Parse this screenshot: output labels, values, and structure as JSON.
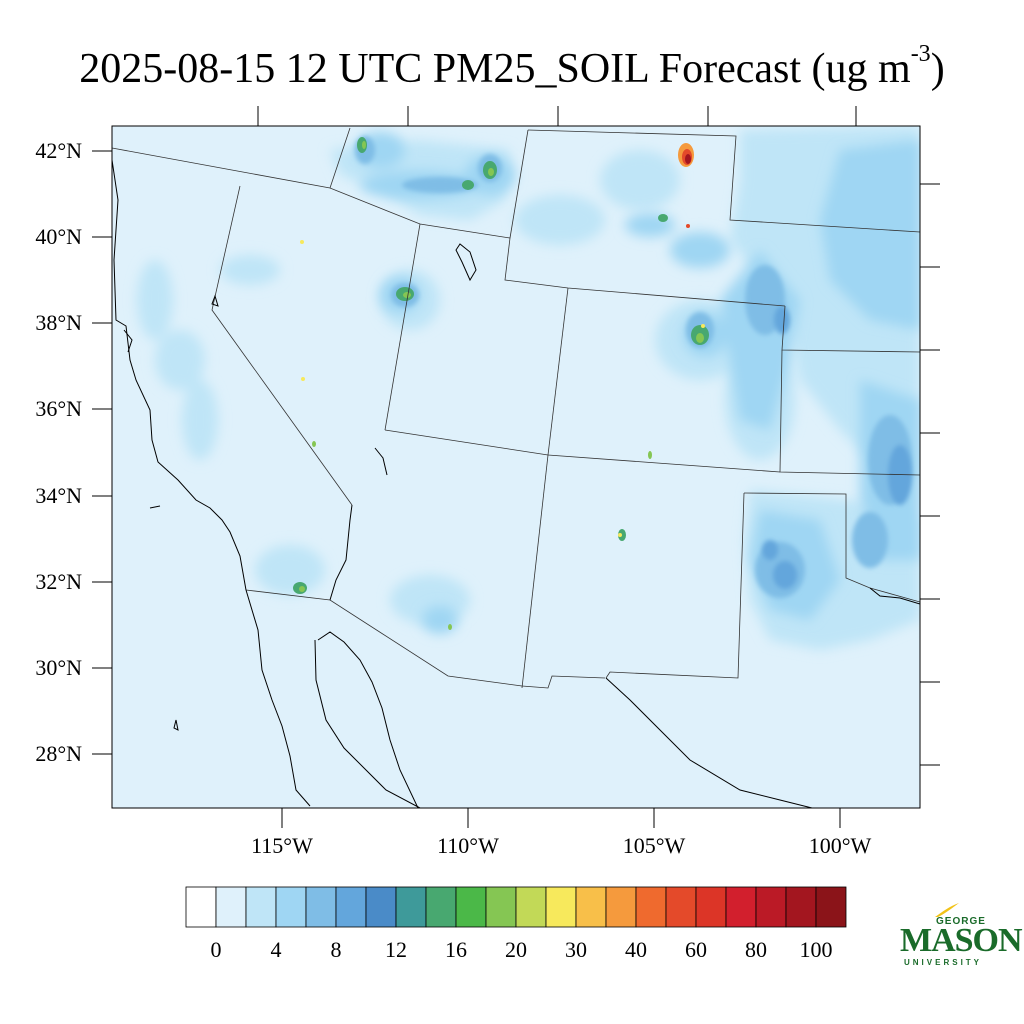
{
  "title": {
    "text": "2025-08-15 12 UTC PM25_SOIL Forecast (ug m",
    "superscript": "-3",
    "close": ")"
  },
  "map": {
    "lon_range": [
      -119.5,
      -98.0
    ],
    "lat_range": [
      26.8,
      42.6
    ],
    "lat_labels": [
      "42°N",
      "40°N",
      "38°N",
      "36°N",
      "34°N",
      "32°N",
      "30°N",
      "28°N"
    ],
    "lon_labels": [
      "115°W",
      "110°W",
      "105°W",
      "100°W"
    ],
    "field_background": "#dff1fb"
  },
  "colorbar": {
    "colors": [
      "#ffffff",
      "#dff1fb",
      "#bfe5f7",
      "#9fd6f3",
      "#7fbde6",
      "#63a6dc",
      "#4a8bc8",
      "#3e9a9a",
      "#48a870",
      "#4bb848",
      "#85c653",
      "#c2d957",
      "#f7e95c",
      "#f8bf49",
      "#f59a3d",
      "#ef6a2e",
      "#e44a2a",
      "#dc3527",
      "#d21f2d",
      "#bb1a26",
      "#a3161f",
      "#8b1419"
    ],
    "labels": [
      "0",
      "4",
      "8",
      "12",
      "16",
      "20",
      "30",
      "40",
      "60",
      "80",
      "100"
    ]
  },
  "logo": {
    "line1": "GEORGE",
    "line2": "MASON",
    "line3": "UNIVERSITY",
    "color": "#1a6b2a",
    "accent": "#f2c318"
  }
}
